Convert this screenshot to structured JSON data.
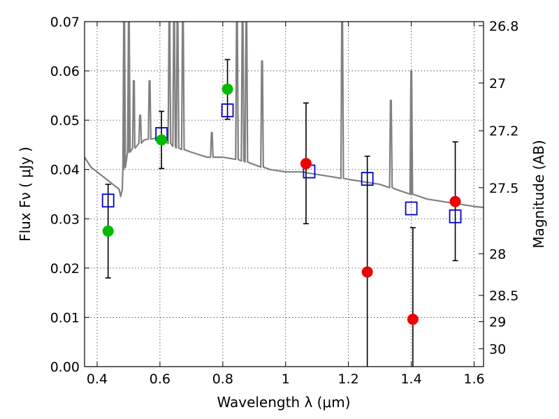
{
  "chart_data": {
    "type": "scatter",
    "title": "",
    "xlabel": "Wavelength  λ (μm)",
    "ylabel": "Flux  Fν  ( μJy )",
    "y2label": "Magnitude (AB)",
    "xlim": [
      0.36,
      1.63
    ],
    "ylim": [
      0.0,
      0.07
    ],
    "grid": true,
    "legend": "none",
    "xticks": [
      {
        "v": 0.4,
        "label": "0.4"
      },
      {
        "v": 0.6,
        "label": "0.6"
      },
      {
        "v": 0.8,
        "label": "0.8"
      },
      {
        "v": 1.0,
        "label": "1"
      },
      {
        "v": 1.2,
        "label": "1.2"
      },
      {
        "v": 1.4,
        "label": "1.4"
      },
      {
        "v": 1.6,
        "label": "1.6"
      }
    ],
    "yticks": [
      {
        "v": 0.0,
        "label": "0.00"
      },
      {
        "v": 0.01,
        "label": "0.01"
      },
      {
        "v": 0.02,
        "label": "0.02"
      },
      {
        "v": 0.03,
        "label": "0.03"
      },
      {
        "v": 0.04,
        "label": "0.04"
      },
      {
        "v": 0.05,
        "label": "0.05"
      },
      {
        "v": 0.06,
        "label": "0.06"
      },
      {
        "v": 0.07,
        "label": "0.07"
      }
    ],
    "y2ticks": [
      {
        "mag": 26.8,
        "label": "26.8"
      },
      {
        "mag": 27,
        "label": "27"
      },
      {
        "mag": 27.2,
        "label": "27.2"
      },
      {
        "mag": 27.5,
        "label": "27.5"
      },
      {
        "mag": 28,
        "label": "28"
      },
      {
        "mag": 28.5,
        "label": "28.5"
      },
      {
        "mag": 29,
        "label": "29"
      },
      {
        "mag": 30,
        "label": "30"
      }
    ],
    "colors": {
      "model": "#808080",
      "green": "#00bb00",
      "red": "#ee0000",
      "box": "#0000cc",
      "errorbar": "#000000"
    },
    "model_spectrum": {
      "x": [
        0.36,
        0.38,
        0.4,
        0.42,
        0.44,
        0.46,
        0.47,
        0.475,
        0.48,
        0.485,
        0.49,
        0.5,
        0.52,
        0.55,
        0.6,
        0.65,
        0.7,
        0.75,
        0.8,
        0.85,
        0.9,
        0.95,
        1.0,
        1.05,
        1.1,
        1.15,
        1.2,
        1.25,
        1.3,
        1.35,
        1.4,
        1.45,
        1.5,
        1.55,
        1.6,
        1.63
      ],
      "y": [
        0.0425,
        0.0405,
        0.0395,
        0.0385,
        0.0375,
        0.0365,
        0.036,
        0.0345,
        0.036,
        0.04,
        0.042,
        0.0435,
        0.0445,
        0.046,
        0.0465,
        0.0445,
        0.0435,
        0.0425,
        0.0425,
        0.042,
        0.041,
        0.04,
        0.0395,
        0.0395,
        0.039,
        0.0385,
        0.038,
        0.0375,
        0.037,
        0.036,
        0.035,
        0.034,
        0.0335,
        0.033,
        0.0325,
        0.0323
      ]
    },
    "emission_lines": [
      {
        "x": 0.486,
        "peak": 0.07
      },
      {
        "x": 0.501,
        "peak": 0.07
      },
      {
        "x": 0.517,
        "peak": 0.058
      },
      {
        "x": 0.537,
        "peak": 0.051
      },
      {
        "x": 0.567,
        "peak": 0.058
      },
      {
        "x": 0.63,
        "peak": 0.07
      },
      {
        "x": 0.645,
        "peak": 0.07
      },
      {
        "x": 0.656,
        "peak": 0.07
      },
      {
        "x": 0.673,
        "peak": 0.07
      },
      {
        "x": 0.765,
        "peak": 0.0475
      },
      {
        "x": 0.845,
        "peak": 0.07
      },
      {
        "x": 0.863,
        "peak": 0.07
      },
      {
        "x": 0.875,
        "peak": 0.07
      },
      {
        "x": 0.925,
        "peak": 0.062
      },
      {
        "x": 1.18,
        "peak": 0.07
      },
      {
        "x": 1.335,
        "peak": 0.054
      },
      {
        "x": 1.4,
        "peak": 0.06
      }
    ],
    "green_points": {
      "x": [
        0.435,
        0.605,
        0.815
      ],
      "y": [
        0.0275,
        0.046,
        0.0563
      ]
    },
    "red_points": {
      "x": [
        1.065,
        1.26,
        1.405,
        1.54
      ],
      "y": [
        0.0412,
        0.0192,
        0.0096,
        0.0335
      ]
    },
    "box_points": {
      "x": [
        0.435,
        0.605,
        0.815,
        1.075,
        1.26,
        1.4,
        1.54
      ],
      "y": [
        0.0337,
        0.0472,
        0.052,
        0.0396,
        0.0381,
        0.0321,
        0.0305
      ]
    },
    "error_bars": [
      {
        "x": 0.435,
        "low": 0.018,
        "high": 0.037
      },
      {
        "x": 0.605,
        "low": 0.0402,
        "high": 0.0518
      },
      {
        "x": 0.815,
        "low": 0.0502,
        "high": 0.0623
      },
      {
        "x": 1.065,
        "low": 0.029,
        "high": 0.0535
      },
      {
        "x": 1.26,
        "low": 0.0,
        "high": 0.0427
      },
      {
        "x": 1.405,
        "low": 0.0,
        "high": 0.0282
      },
      {
        "x": 1.54,
        "low": 0.0215,
        "high": 0.0456
      }
    ]
  }
}
